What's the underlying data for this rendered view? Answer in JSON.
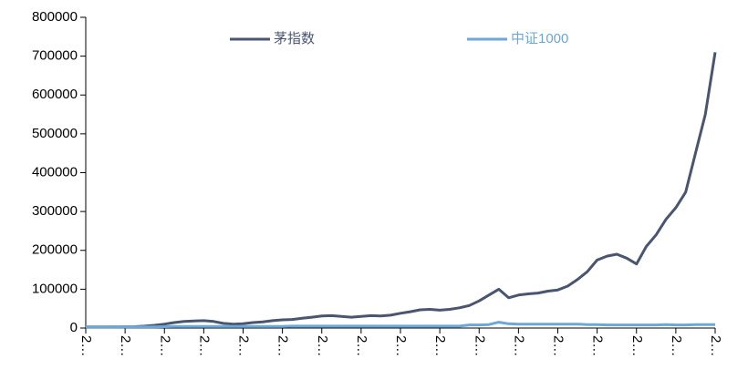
{
  "chart_data": {
    "type": "line",
    "categories": [
      "2…",
      null,
      null,
      null,
      "2…",
      null,
      null,
      null,
      "2…",
      null,
      null,
      null,
      "2…",
      null,
      null,
      null,
      "2…",
      null,
      null,
      null,
      "2…",
      null,
      null,
      null,
      "2…",
      null,
      null,
      null,
      "2…",
      null,
      null,
      null,
      "2…",
      null,
      null,
      null,
      "2…",
      null,
      null,
      null,
      "2…",
      null,
      null,
      null,
      "2…",
      null,
      null,
      null,
      "2…",
      null,
      null,
      null,
      "2…",
      null,
      null,
      null,
      "2…",
      null,
      null,
      null,
      "2…",
      null,
      null,
      null,
      "2…"
    ],
    "series": [
      {
        "name": "茅指数",
        "color": "#4a5670",
        "values": [
          3000,
          3000,
          3000,
          3000,
          3200,
          3500,
          5000,
          7000,
          10000,
          14000,
          17000,
          18000,
          19000,
          17000,
          12000,
          10000,
          11000,
          14000,
          16000,
          19000,
          21000,
          22000,
          25000,
          28000,
          31000,
          32000,
          30000,
          28000,
          30000,
          32000,
          31000,
          33000,
          38000,
          42000,
          47000,
          48000,
          46000,
          48000,
          52000,
          58000,
          70000,
          85000,
          100000,
          78000,
          85000,
          88000,
          90000,
          95000,
          98000,
          108000,
          125000,
          145000,
          175000,
          185000,
          190000,
          180000,
          165000,
          210000,
          240000,
          280000,
          310000,
          350000,
          450000,
          550000,
          710000
        ]
      },
      {
        "name": "中证1000",
        "color": "#6aa7da",
        "values": [
          3000,
          3000,
          3000,
          3000,
          3000,
          3000,
          3000,
          3000,
          3500,
          4000,
          4000,
          4000,
          4000,
          4000,
          4000,
          4000,
          4000,
          4000,
          4000,
          4000,
          4000,
          5000,
          5000,
          5000,
          5000,
          5000,
          5000,
          5000,
          5000,
          5000,
          5000,
          5000,
          5000,
          5000,
          5000,
          5000,
          5000,
          5000,
          5000,
          8000,
          8000,
          9000,
          15000,
          11000,
          10000,
          10000,
          10000,
          10000,
          10000,
          10000,
          10000,
          9000,
          9000,
          8000,
          8000,
          8000,
          8000,
          8000,
          8000,
          9000,
          8000,
          8000,
          9000,
          9000,
          9000
        ]
      }
    ],
    "ylim": [
      0,
      800000
    ],
    "yticks": [
      0,
      100000,
      200000,
      300000,
      400000,
      500000,
      600000,
      700000,
      800000
    ],
    "legend": "top"
  }
}
